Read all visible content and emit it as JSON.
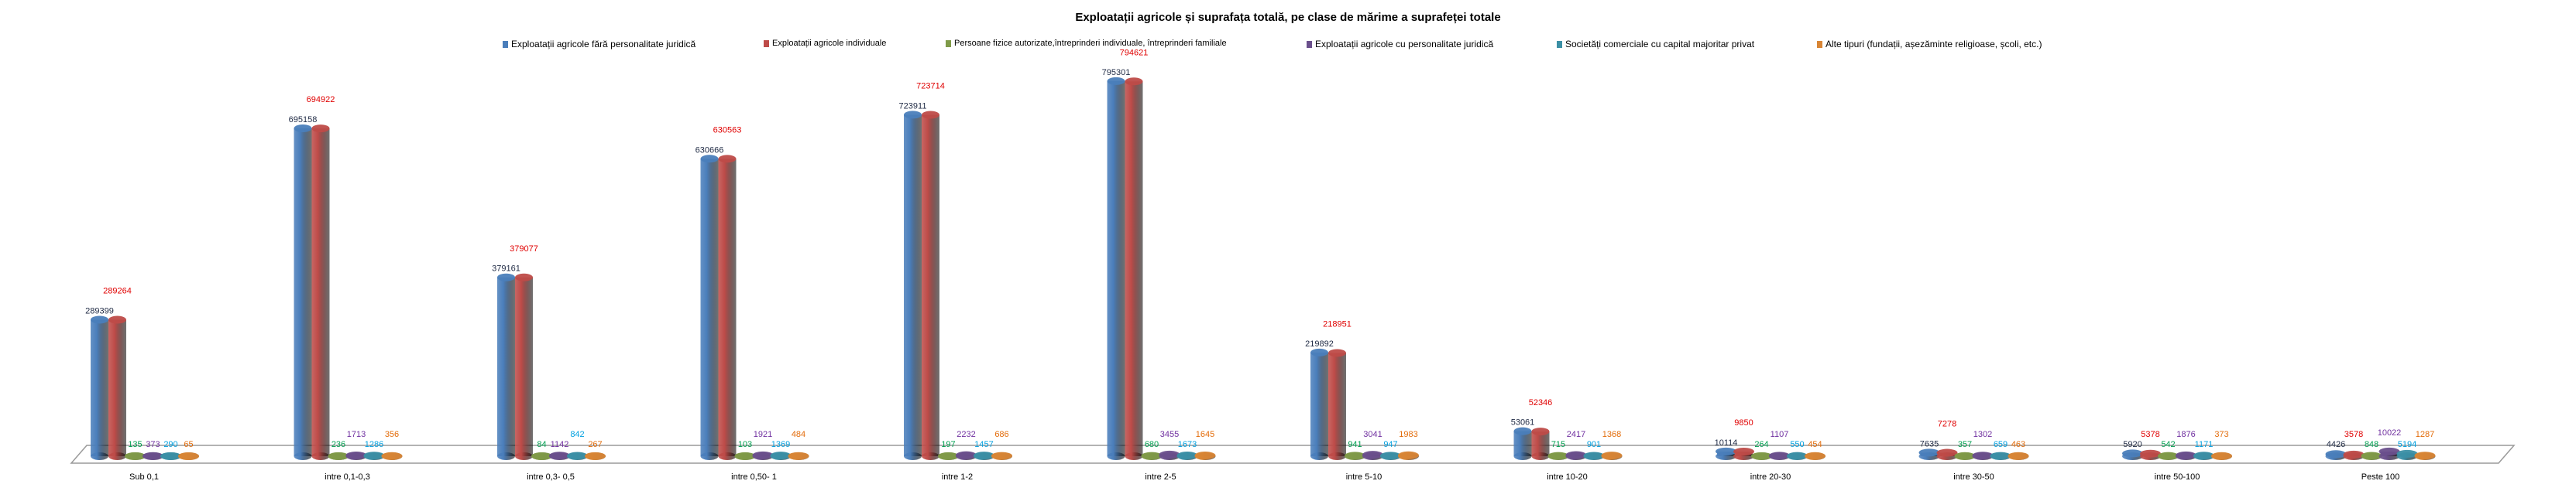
{
  "chart_data": {
    "type": "bar",
    "title": "Exploatații agricole și suprafața totală, pe clase de mărime a suprafeței totale",
    "xlabel": "",
    "ylabel": "",
    "ylim": [
      0,
      800000
    ],
    "grid": false,
    "legend_position": "top",
    "categories": [
      "Sub 0,1",
      "intre 0,1-0,3",
      "intre 0,3- 0,5",
      "intre 0,50- 1",
      "intre 1-2",
      "intre 2-5",
      "intre 5-10",
      "intre 10-20",
      "intre 20-30",
      "intre 30-50",
      "intre 50-100",
      "Peste 100"
    ],
    "series": [
      {
        "name": "Exploatații agricole fără personalitate juridică",
        "color": "#4a7ebb",
        "label_color": "#1f2a44",
        "values": [
          289399,
          695158,
          379161,
          630666,
          723911,
          795301,
          219892,
          53061,
          10114,
          7635,
          5920,
          4426
        ]
      },
      {
        "name": "Exploatații agricole individuale",
        "color": "#be4b48",
        "label_color": "#e00000",
        "values": [
          289264,
          694922,
          379077,
          630563,
          723714,
          794621,
          218951,
          52346,
          9850,
          7278,
          5378,
          3578
        ]
      },
      {
        "name": "Persoane fizice autorizate,întreprinderi individuale, întreprinderi familiale",
        "color": "#7f9a48",
        "label_color": "#00a050",
        "values": [
          135,
          236,
          84,
          103,
          197,
          680,
          941,
          715,
          264,
          357,
          542,
          848
        ]
      },
      {
        "name": "Exploatații agricole cu personalitate juridică",
        "color": "#6a4f8c",
        "label_color": "#7030a0",
        "values": [
          373,
          1713,
          1142,
          1921,
          2232,
          3455,
          3041,
          2417,
          1107,
          1302,
          1876,
          10022
        ]
      },
      {
        "name": "Societăți comerciale cu capital majoritar privat",
        "color": "#3b8fa5",
        "label_color": "#00a0e0",
        "values": [
          290,
          1286,
          842,
          1369,
          1457,
          1673,
          947,
          901,
          550,
          659,
          1171,
          5194
        ]
      },
      {
        "name": "Alte tipuri (fundații, așezăminte religioase, școli, etc.)",
        "color": "#d88535",
        "label_color": "#e36c0a",
        "values": [
          65,
          356,
          267,
          484,
          686,
          1645,
          1983,
          1368,
          454,
          463,
          373,
          1287
        ]
      }
    ]
  }
}
